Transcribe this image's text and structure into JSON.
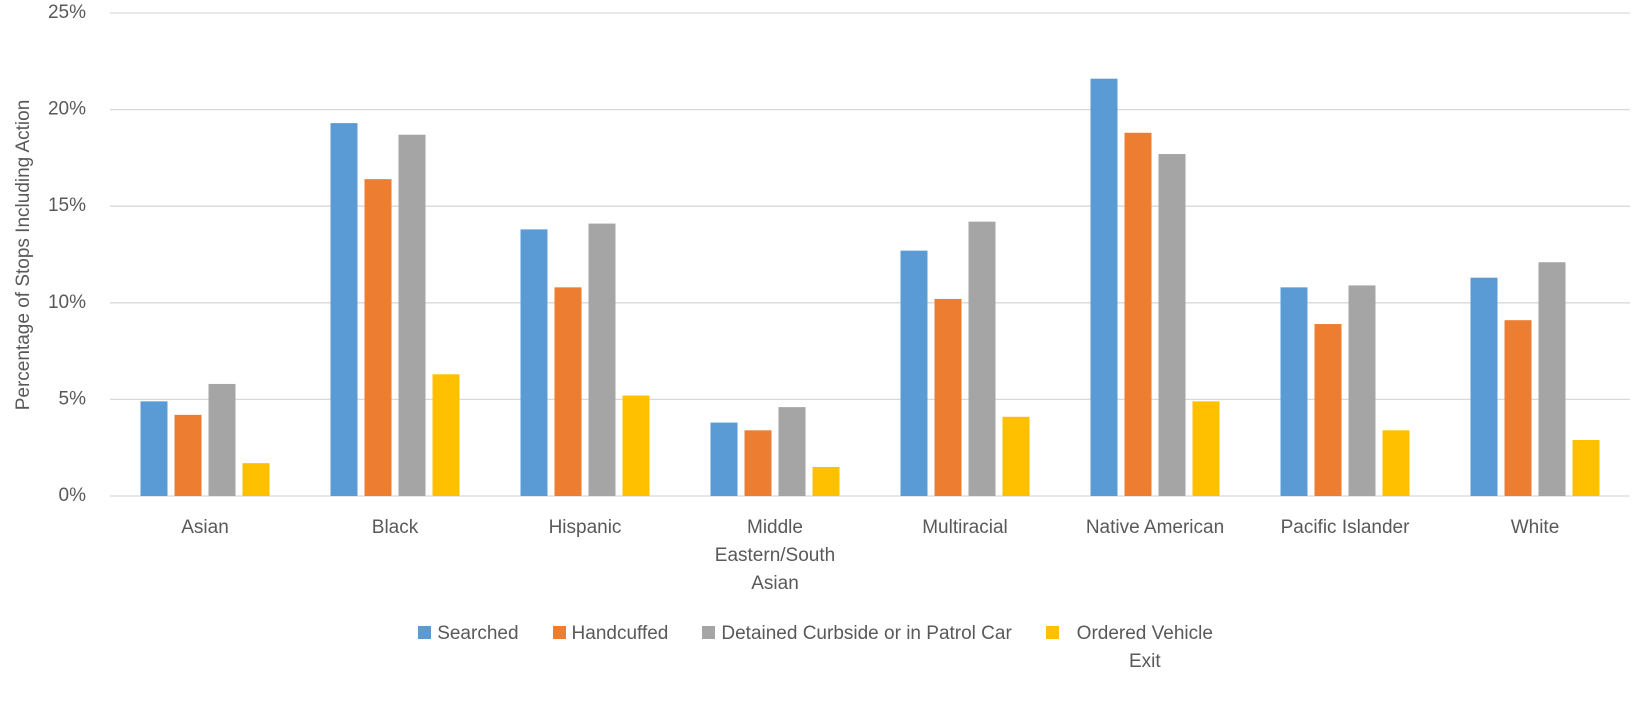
{
  "chart_data": {
    "type": "bar",
    "y_label": "Percentage of Stops Including Action",
    "categories": [
      "Asian",
      "Black",
      "Hispanic",
      "Middle Eastern/South Asian",
      "Multiracial",
      "Native American",
      "Pacific Islander",
      "White"
    ],
    "series": [
      {
        "name": "Searched",
        "color": "#5b9bd5",
        "values": [
          4.9,
          19.3,
          13.8,
          3.8,
          12.7,
          21.6,
          10.8,
          11.3
        ]
      },
      {
        "name": "Handcuffed",
        "color": "#ed7d31",
        "values": [
          4.2,
          16.4,
          10.8,
          3.4,
          10.2,
          18.8,
          8.9,
          9.1
        ]
      },
      {
        "name": "Detained Curbside or in Patrol Car",
        "color": "#a5a5a5",
        "values": [
          5.8,
          18.7,
          14.1,
          4.6,
          14.2,
          17.7,
          10.9,
          12.1
        ]
      },
      {
        "name": "Ordered Vehicle Exit",
        "color": "#ffc000",
        "values": [
          1.7,
          6.3,
          5.2,
          1.5,
          4.1,
          4.9,
          3.4,
          2.9
        ]
      }
    ],
    "ylim": [
      0,
      25
    ],
    "yticks": [
      {
        "value": 0,
        "label": "0%"
      },
      {
        "value": 5,
        "label": "5%"
      },
      {
        "value": 10,
        "label": "10%"
      },
      {
        "value": 15,
        "label": "15%"
      },
      {
        "value": 20,
        "label": "20%"
      },
      {
        "value": 25,
        "label": "25%"
      }
    ],
    "grid": true
  }
}
